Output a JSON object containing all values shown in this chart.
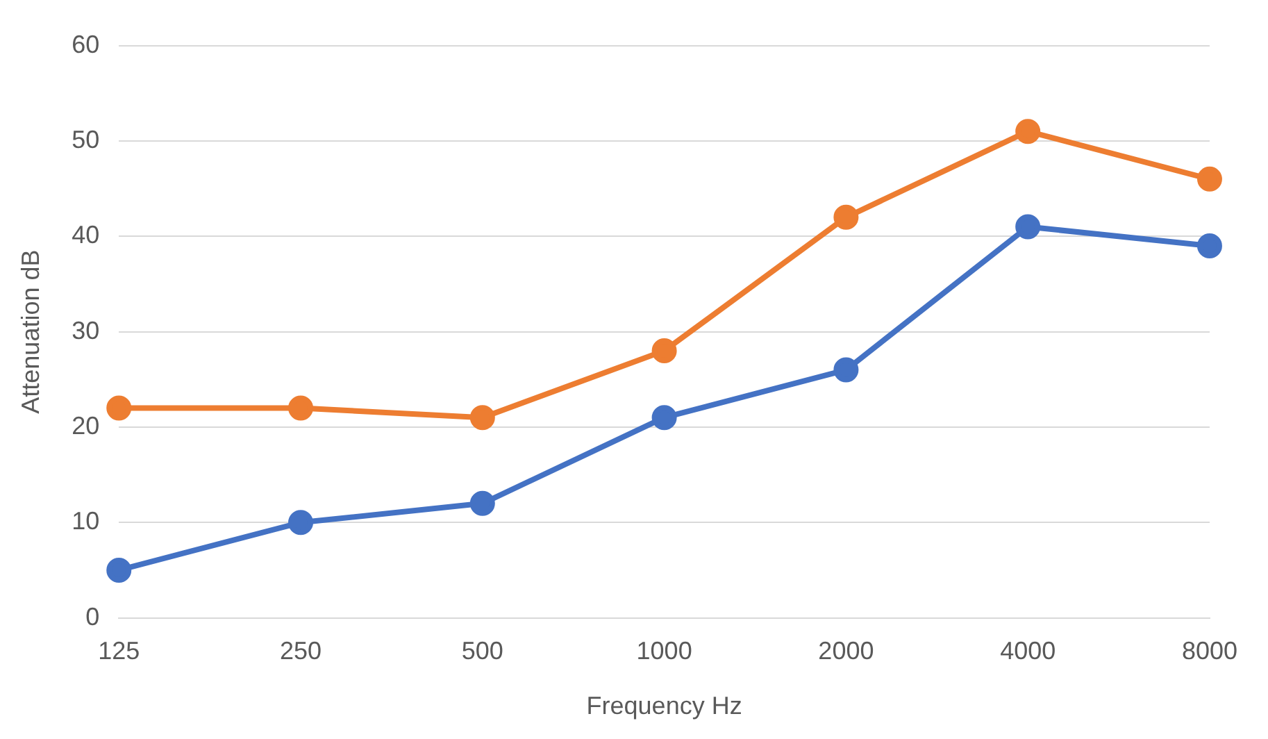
{
  "chart_data": {
    "type": "line",
    "xlabel": "Frequency Hz",
    "ylabel": "Attenuation dB",
    "categories": [
      "125",
      "250",
      "500",
      "1000",
      "2000",
      "4000",
      "8000"
    ],
    "series": [
      {
        "color": "#4472c4",
        "values": [
          5,
          10,
          12,
          21,
          26,
          41,
          39
        ]
      },
      {
        "color": "#ed7d31",
        "values": [
          22,
          22,
          21,
          28,
          42,
          51,
          46
        ]
      }
    ],
    "ylim": [
      0,
      60
    ],
    "yticks": [
      0,
      10,
      20,
      30,
      40,
      50,
      60
    ],
    "grid": "y",
    "legend": false,
    "marker": "circle",
    "line_style": "solid"
  }
}
